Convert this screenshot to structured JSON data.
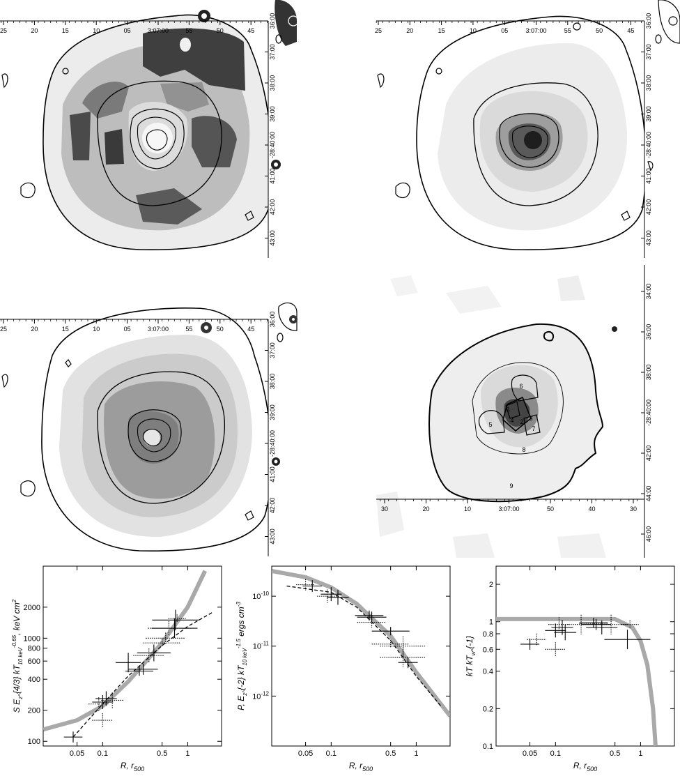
{
  "maps": {
    "top_ra_labels": [
      "25",
      "20",
      "15",
      "10",
      "05",
      "3:07:00",
      "55",
      "50",
      "45"
    ],
    "top_dec_labels": [
      "36:00",
      "37:00",
      "38:00",
      "39:00",
      "-28:40:00",
      "41:00",
      "42:00",
      "43:00"
    ],
    "br_ra_labels": [
      "30",
      "20",
      "10",
      "3:07:00",
      "50",
      "40",
      "30"
    ],
    "br_dec_labels": [
      "34:00",
      "36:00",
      "38:00",
      "-28:40:00",
      "42:00",
      "44:00",
      "46:00"
    ],
    "regions": [
      "1",
      "2",
      "3",
      "4",
      "5",
      "6",
      "7",
      "8",
      "9"
    ]
  },
  "chart_data": [
    {
      "type": "scatter",
      "title": "",
      "xlabel": "R, r500",
      "ylabel": "S E_z^{4/3} kT_{10 keV}^{-0.65}, keV cm^2",
      "xscale": "log",
      "yscale": "log",
      "xlim": [
        0.02,
        2.5
      ],
      "ylim": [
        90,
        5000
      ],
      "x_ticks": [
        "0.05",
        "0.1",
        "0.5",
        "1"
      ],
      "y_ticks": [
        "100",
        "200",
        "400",
        "600",
        "800",
        "1000",
        "2000"
      ],
      "series": [
        {
          "style": "solid",
          "points": [
            [
              0.045,
              110
            ],
            [
              0.1,
              240
            ],
            [
              0.11,
              260
            ],
            [
              0.2,
              580
            ],
            [
              0.27,
              480
            ],
            [
              0.3,
              500
            ],
            [
              0.4,
              720
            ],
            [
              0.7,
              1250
            ],
            [
              0.72,
              1500
            ]
          ]
        },
        {
          "style": "dotted",
          "points": [
            [
              0.09,
              230
            ],
            [
              0.1,
              160
            ],
            [
              0.13,
              250
            ],
            [
              0.35,
              680
            ],
            [
              0.5,
              900
            ],
            [
              0.55,
              1000
            ],
            [
              0.6,
              1250
            ],
            [
              0.75,
              1550
            ]
          ]
        }
      ],
      "model_gray": [
        [
          0.02,
          130
        ],
        [
          0.05,
          160
        ],
        [
          0.1,
          220
        ],
        [
          0.2,
          380
        ],
        [
          0.5,
          900
        ],
        [
          1,
          2000
        ],
        [
          1.6,
          4500
        ]
      ],
      "model_dashed": [
        [
          0.045,
          110
        ],
        [
          0.1,
          230
        ],
        [
          0.2,
          430
        ],
        [
          0.5,
          850
        ],
        [
          1,
          1300
        ],
        [
          2,
          1800
        ]
      ]
    },
    {
      "type": "scatter",
      "title": "",
      "xlabel": "R, r500",
      "ylabel": "P, E_z^{-2} kT_{10 keV}^{-1.5} ergs cm^{-3}",
      "xscale": "log",
      "yscale": "log",
      "xlim": [
        0.02,
        2.5
      ],
      "ylim": [
        1e-13,
        4e-10
      ],
      "x_ticks": [
        "0.05",
        "0.1",
        "0.5",
        "1"
      ],
      "y_ticks": [
        "10^-12",
        "10^-11",
        "10^-10"
      ],
      "series": [
        {
          "style": "solid",
          "points": [
            [
              0.06,
              1.6e-10
            ],
            [
              0.1,
              1.1e-10
            ],
            [
              0.12,
              9.5e-11
            ],
            [
              0.28,
              4.1e-11
            ],
            [
              0.3,
              3.8e-11
            ],
            [
              0.5,
              2e-11
            ],
            [
              0.8,
              4.7e-12
            ]
          ]
        },
        {
          "style": "dotted",
          "points": [
            [
              0.05,
              1.7e-10
            ],
            [
              0.09,
              1e-10
            ],
            [
              0.3,
              3e-11
            ],
            [
              0.5,
              1.1e-11
            ],
            [
              0.7,
              1e-11
            ],
            [
              0.7,
              6e-12
            ]
          ]
        }
      ],
      "model_gray": [
        [
          0.02,
          3.2e-10
        ],
        [
          0.05,
          2.4e-10
        ],
        [
          0.1,
          1.5e-10
        ],
        [
          0.2,
          7e-11
        ],
        [
          0.5,
          1.6e-11
        ],
        [
          1,
          3e-12
        ],
        [
          2.5,
          4e-13
        ]
      ],
      "model_dashed": [
        [
          0.03,
          1.6e-10
        ],
        [
          0.1,
          1.2e-10
        ],
        [
          0.2,
          6e-11
        ],
        [
          0.5,
          1.3e-11
        ],
        [
          1,
          2.5e-12
        ],
        [
          2,
          6e-13
        ]
      ]
    },
    {
      "type": "scatter",
      "title": "",
      "xlabel": "R, r500",
      "ylabel": "kT kT_w^{-1}",
      "xscale": "log",
      "yscale": "log",
      "xlim": [
        0.02,
        2.5
      ],
      "ylim": [
        0.1,
        2.8
      ],
      "x_ticks": [
        "0.05",
        "0.1",
        "0.5",
        "1"
      ],
      "y_ticks": [
        "0.1",
        "0.2",
        "0.4",
        "0.6",
        "0.8",
        "1",
        "2"
      ],
      "series": [
        {
          "style": "solid",
          "points": [
            [
              0.05,
              0.66
            ],
            [
              0.1,
              0.85
            ],
            [
              0.12,
              0.9
            ],
            [
              0.13,
              0.82
            ],
            [
              0.28,
              0.98
            ],
            [
              0.3,
              0.95
            ],
            [
              0.35,
              0.9
            ],
            [
              0.7,
              0.72
            ]
          ]
        },
        {
          "style": "dotted",
          "points": [
            [
              0.06,
              0.72
            ],
            [
              0.1,
              0.6
            ],
            [
              0.11,
              0.95
            ],
            [
              0.2,
              0.95
            ],
            [
              0.28,
              0.97
            ],
            [
              0.45,
              0.95
            ],
            [
              0.75,
              0.95
            ]
          ]
        }
      ],
      "model_gray": [
        [
          0.02,
          1.05
        ],
        [
          0.5,
          1.05
        ],
        [
          0.8,
          0.9
        ],
        [
          1,
          0.7
        ],
        [
          1.2,
          0.45
        ],
        [
          1.4,
          0.2
        ],
        [
          1.5,
          0.1
        ]
      ]
    }
  ]
}
